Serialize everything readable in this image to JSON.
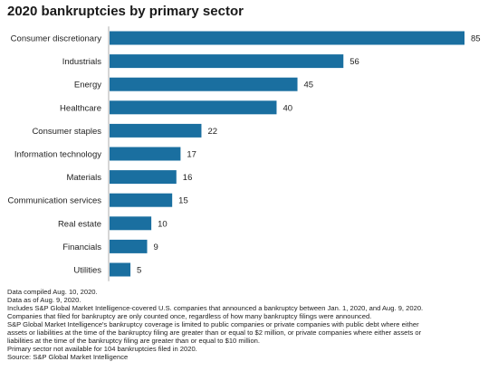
{
  "chart_data": {
    "type": "bar",
    "orientation": "horizontal",
    "title": "2020 bankruptcies by primary sector",
    "xlabel": "",
    "ylabel": "",
    "categories": [
      "Consumer discretionary",
      "Industrials",
      "Energy",
      "Healthcare",
      "Consumer staples",
      "Information technology",
      "Materials",
      "Communication services",
      "Real estate",
      "Financials",
      "Utilities"
    ],
    "values": [
      85,
      56,
      45,
      40,
      22,
      17,
      16,
      15,
      10,
      9,
      5
    ],
    "xlim": [
      0,
      85
    ],
    "grid": false,
    "legend": "none",
    "bar_color": "#1a6fa0"
  },
  "notes": [
    "Data compiled Aug. 10, 2020.",
    "Data as of Aug. 9, 2020.",
    "Includes S&P Global Market Intelligence-covered U.S. companies that announced a bankruptcy between Jan. 1, 2020, and Aug. 9, 2020.",
    "Companies that filed for bankruptcy are only counted once, regardless of how many bankruptcy filings were announced.",
    "S&P Global Market Intelligence's bankruptcy coverage is limited to public companies or private companies with public debt where either",
    "assets or liabilities at the time of the bankruptcy filing are greater than or equal to $2 million, or private companies where either assets or",
    "liabilities at the time of the bankruptcy filing are greater than or equal to $10 million.",
    "Primary sector not available for 104 bankruptcies filed in 2020.",
    "Source: S&P Global Market Intelligence"
  ]
}
